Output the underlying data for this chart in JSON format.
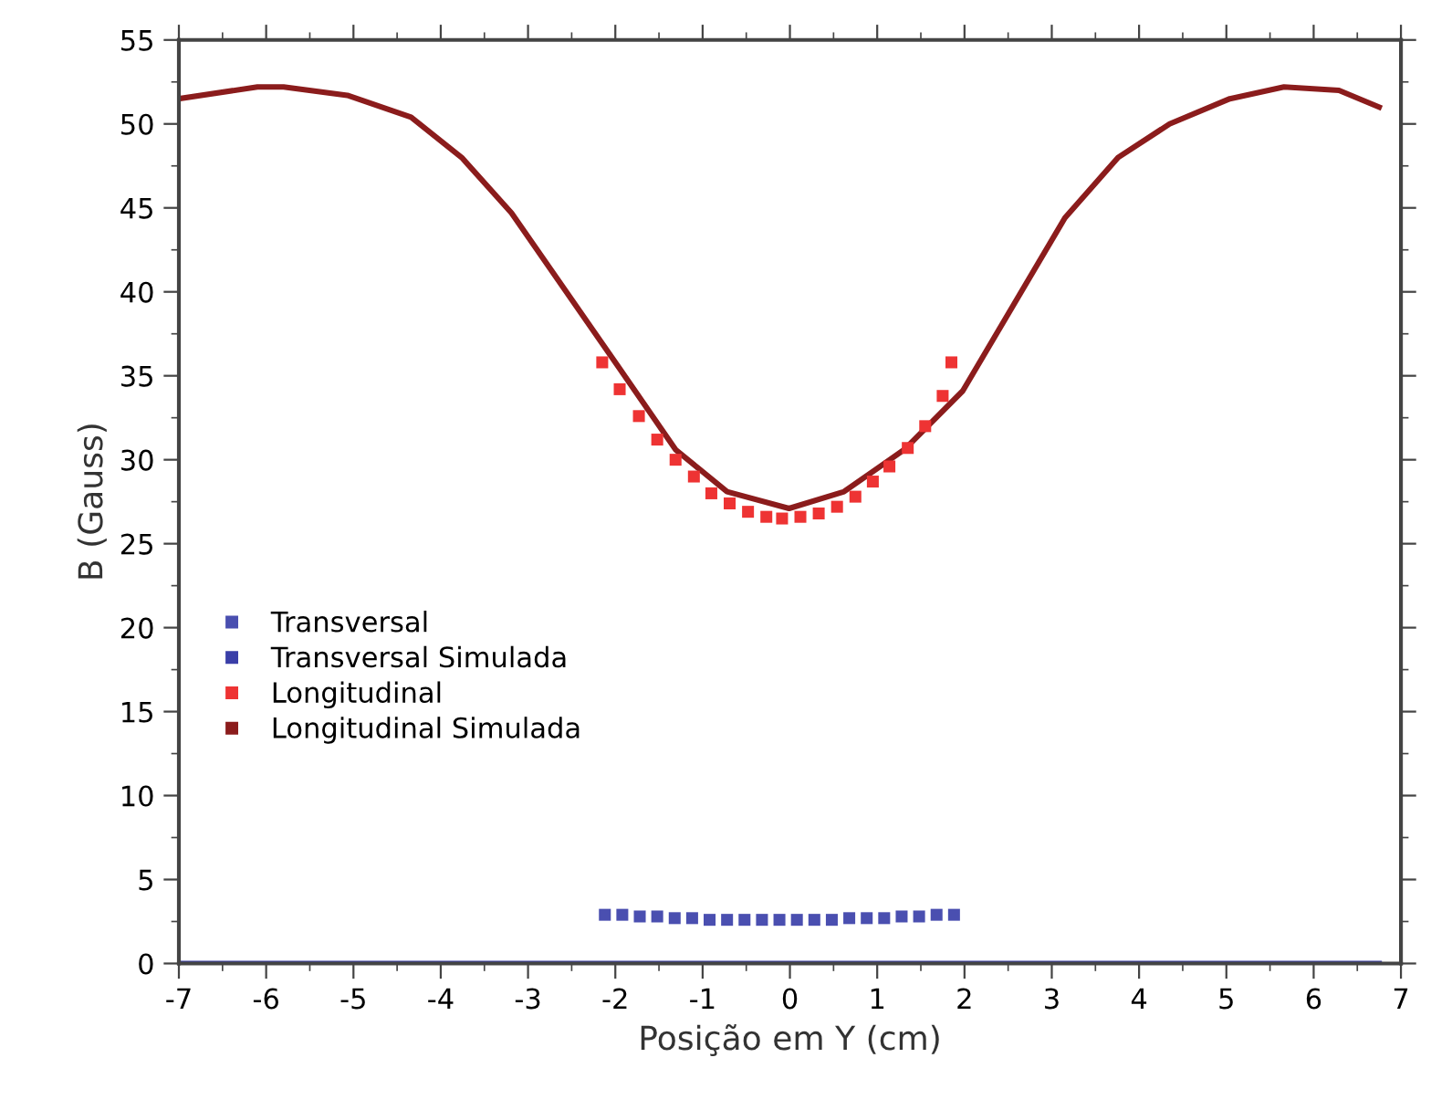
{
  "chart_data": {
    "type": "scatter",
    "xlabel": "Posição em Y (cm)",
    "ylabel": "B (Gauss)",
    "xlim": [
      -7,
      7
    ],
    "ylim": [
      0,
      55
    ],
    "xticks": [
      -7,
      -6,
      -5,
      -4,
      -3,
      -2,
      -1,
      0,
      1,
      2,
      3,
      4,
      5,
      6,
      7
    ],
    "yticks": [
      0,
      5,
      10,
      15,
      20,
      25,
      30,
      35,
      40,
      45,
      50,
      55
    ],
    "grid": false,
    "legend": "center left",
    "marker": "square",
    "series": [
      {
        "name": "Transversal",
        "color": "#4a4fb0",
        "x": [
          -2.12,
          -1.92,
          -1.72,
          -1.52,
          -1.32,
          -1.12,
          -0.92,
          -0.72,
          -0.52,
          -0.32,
          -0.12,
          0.08,
          0.28,
          0.48,
          0.68,
          0.88,
          1.08,
          1.28,
          1.48,
          1.68,
          1.88
        ],
        "values": [
          2.9,
          2.9,
          2.8,
          2.8,
          2.7,
          2.7,
          2.6,
          2.6,
          2.6,
          2.6,
          2.6,
          2.6,
          2.6,
          2.6,
          2.7,
          2.7,
          2.7,
          2.8,
          2.8,
          2.9,
          2.9
        ]
      },
      {
        "name": "Transversal Simulada",
        "type": "line",
        "marker": "none",
        "color": "#3a3fa8",
        "x": [
          -7,
          -5,
          -3,
          -1,
          0,
          1,
          3,
          5,
          6.75
        ],
        "values": [
          0,
          0,
          0,
          0,
          0,
          0,
          0,
          0,
          0
        ]
      },
      {
        "name": "Longitudinal",
        "color": "#ee3333",
        "x": [
          -2.15,
          -1.95,
          -1.73,
          -1.52,
          -1.31,
          -1.1,
          -0.9,
          -0.69,
          -0.48,
          -0.27,
          -0.09,
          0.12,
          0.33,
          0.54,
          0.75,
          0.95,
          1.14,
          1.35,
          1.55,
          1.75,
          1.85
        ],
        "values": [
          35.8,
          34.2,
          32.6,
          31.2,
          30.0,
          29.0,
          28.0,
          27.4,
          26.9,
          26.6,
          26.5,
          26.6,
          26.8,
          27.2,
          27.8,
          28.7,
          29.6,
          30.7,
          32.0,
          33.8,
          35.8
        ]
      },
      {
        "name": "Longitudinal Simulada",
        "type": "line",
        "marker": "none",
        "color": "#8b1c1c",
        "x": [
          -7,
          -6.1,
          -5.8,
          -5.07,
          -4.34,
          -3.76,
          -3.19,
          -1.96,
          -1.31,
          -0.72,
          -0.01,
          0.62,
          1.31,
          1.98,
          3.15,
          3.76,
          4.35,
          5.04,
          5.66,
          6.29,
          6.75
        ],
        "values": [
          51.5,
          52.2,
          52.2,
          51.7,
          50.4,
          48.0,
          44.7,
          35.5,
          30.6,
          28.1,
          27.1,
          28.1,
          30.6,
          34.1,
          44.4,
          48.0,
          50.0,
          51.5,
          52.2,
          52.0,
          51.0
        ]
      }
    ]
  }
}
